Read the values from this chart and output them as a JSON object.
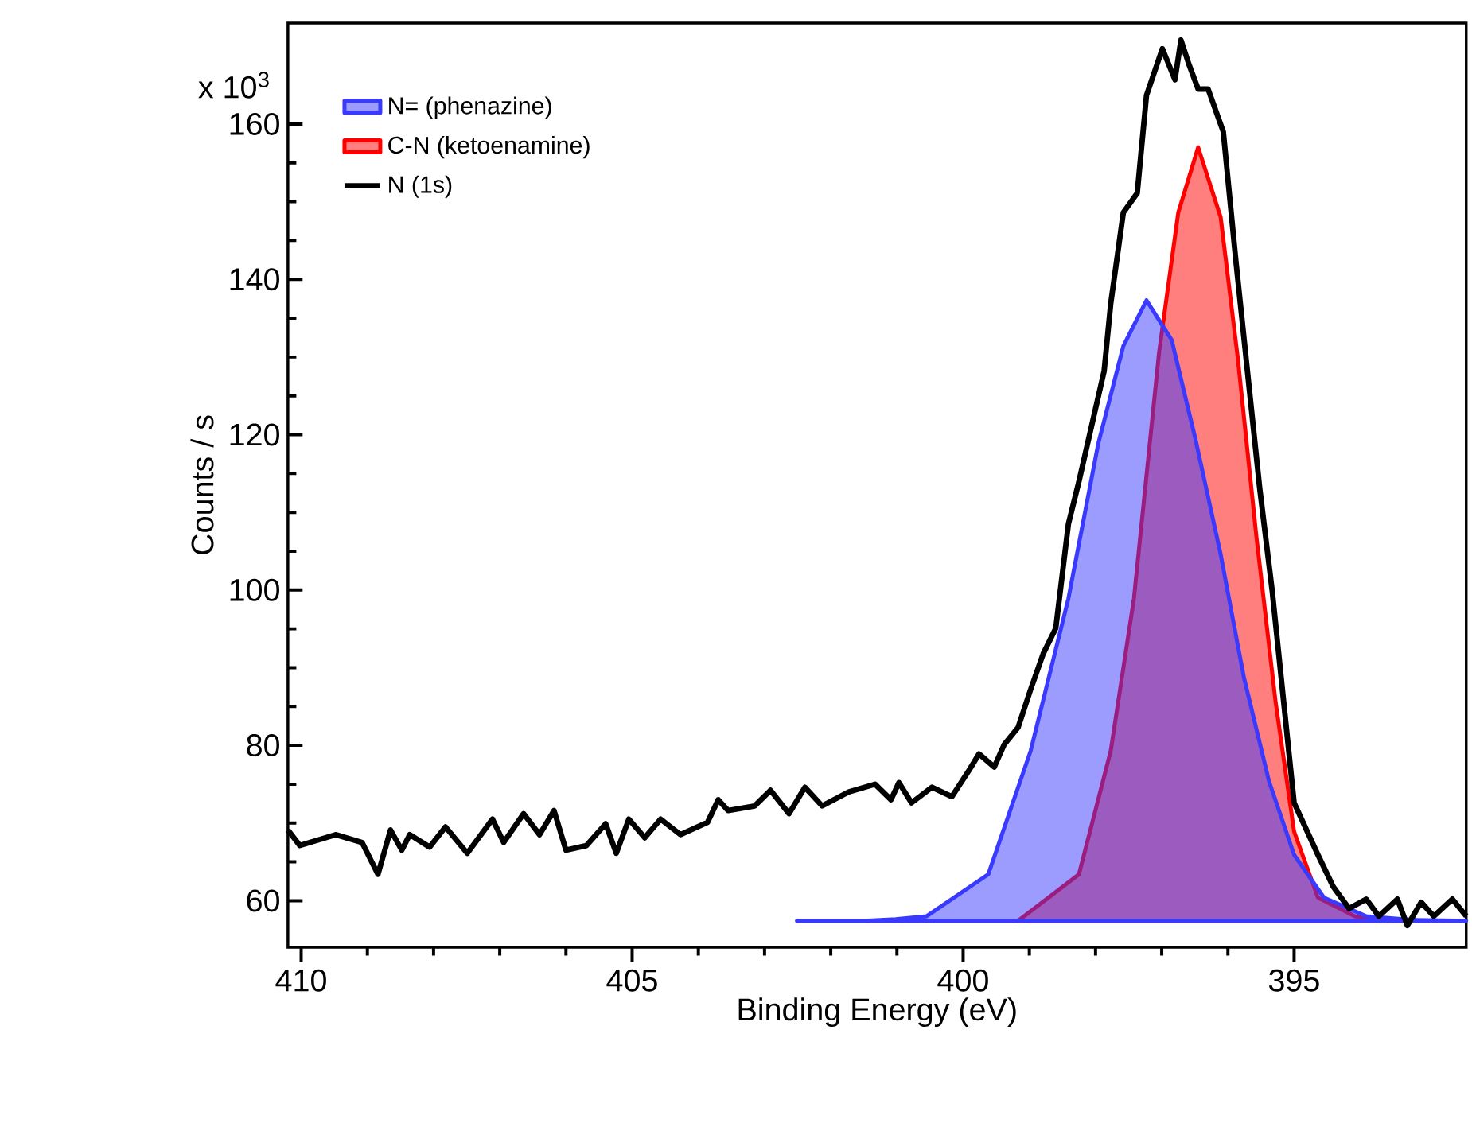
{
  "chart_data": {
    "type": "line",
    "xlabel": "Binding Energy (eV)",
    "ylabel": "Counts / s",
    "xlim": [
      410.2,
      392.4
    ],
    "ylim": [
      54,
      173
    ],
    "xticks": [
      410,
      405,
      400,
      395
    ],
    "yticks": [
      60,
      80,
      100,
      120,
      140,
      160
    ],
    "annotations": [
      "x 10$^{3}$"
    ],
    "legend": "top left",
    "grid": false,
    "series": [
      {
        "name": "N= (phenazine)",
        "type": "area",
        "color": "#3a3aff",
        "x": [
          402.51,
          401.49,
          401.02,
          400.55,
          399.62,
          398.98,
          398.41,
          397.96,
          397.58,
          397.23,
          396.85,
          396.49,
          396.11,
          395.76,
          395.38,
          395.0,
          394.55,
          393.91,
          393.2,
          392.4
        ],
        "values": [
          57.4,
          57.4,
          57.6,
          58.0,
          63.4,
          79.3,
          98.9,
          118.8,
          131.4,
          137.3,
          132.2,
          119.4,
          104.6,
          88.8,
          75.4,
          65.9,
          60.4,
          58.0,
          57.5,
          57.4
        ]
      },
      {
        "name": "C-N (ketoenamine)",
        "type": "area",
        "color": "#ff0000",
        "x": [
          399.17,
          398.25,
          397.77,
          397.42,
          397.04,
          396.75,
          396.45,
          396.11,
          395.85,
          395.57,
          395.28,
          395.0,
          394.64,
          394.08,
          393.36
        ],
        "values": [
          57.4,
          63.4,
          79.3,
          98.9,
          130.6,
          148.6,
          157.0,
          148.0,
          129.8,
          106.9,
          85.6,
          68.9,
          60.4,
          58.0,
          57.4
        ]
      },
      {
        "name": "N (1s)",
        "type": "line",
        "color": "#000000",
        "x": [
          410.2,
          410.02,
          409.48,
          409.08,
          408.84,
          408.65,
          408.48,
          408.36,
          408.06,
          407.82,
          407.49,
          407.11,
          406.94,
          406.64,
          406.4,
          406.18,
          406.0,
          405.69,
          405.4,
          405.24,
          405.05,
          404.81,
          404.57,
          404.27,
          403.86,
          403.7,
          403.55,
          403.15,
          402.91,
          402.63,
          402.39,
          402.13,
          401.73,
          401.33,
          401.09,
          400.97,
          400.78,
          400.47,
          400.17,
          399.91,
          399.76,
          399.53,
          399.38,
          399.17,
          398.98,
          398.79,
          398.6,
          398.41,
          398.25,
          397.87,
          397.77,
          397.58,
          397.37,
          397.23,
          396.99,
          396.8,
          396.71,
          396.59,
          396.45,
          396.3,
          396.07,
          395.88,
          395.52,
          395.33,
          395.0,
          394.64,
          394.41,
          394.17,
          393.91,
          393.72,
          393.44,
          393.29,
          393.08,
          392.89,
          392.61,
          392.4
        ],
        "values": [
          69.1,
          67.1,
          68.5,
          67.5,
          63.4,
          69.1,
          66.5,
          68.5,
          66.9,
          69.5,
          66.1,
          70.5,
          67.5,
          71.2,
          68.5,
          71.6,
          66.5,
          67.1,
          69.9,
          66.1,
          70.5,
          68.1,
          70.5,
          68.5,
          70.1,
          73.0,
          71.6,
          72.2,
          74.2,
          71.2,
          74.6,
          72.2,
          74.0,
          75.0,
          73.0,
          75.2,
          72.6,
          74.6,
          73.4,
          76.8,
          78.9,
          77.2,
          80.1,
          82.3,
          87.2,
          91.8,
          95.1,
          108.5,
          114.0,
          128.2,
          136.9,
          148.6,
          151.1,
          163.7,
          169.7,
          165.7,
          170.8,
          167.7,
          164.5,
          164.5,
          159.0,
          142.4,
          113.1,
          99.8,
          72.6,
          65.9,
          61.8,
          59.0,
          60.2,
          58.0,
          60.2,
          56.8,
          59.8,
          58.0,
          60.2,
          58.0
        ]
      }
    ]
  }
}
